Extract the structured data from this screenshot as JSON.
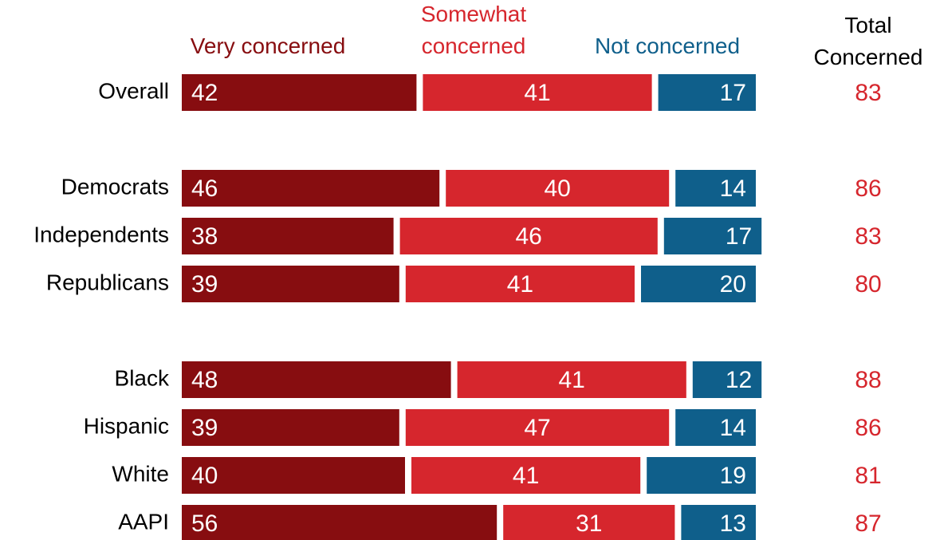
{
  "chart_data": {
    "type": "stacked-bar",
    "categories": [
      "Overall",
      null,
      "Democrats",
      "Independents",
      "Republicans",
      null,
      "Black",
      "Hispanic",
      "White",
      "AAPI"
    ],
    "series": [
      {
        "name": "Very concerned",
        "color": "#870d10",
        "values": [
          42,
          null,
          46,
          38,
          39,
          null,
          48,
          39,
          40,
          56
        ]
      },
      {
        "name": "Somewhat concerned",
        "color": "#d6262d",
        "values": [
          41,
          null,
          40,
          46,
          41,
          null,
          41,
          47,
          41,
          31
        ]
      },
      {
        "name": "Not concerned",
        "color": "#0f5f8b",
        "values": [
          17,
          null,
          14,
          17,
          20,
          null,
          12,
          14,
          19,
          13
        ]
      }
    ],
    "totals": {
      "name": "Total Concerned",
      "color": "#d6262d",
      "values": [
        83,
        null,
        86,
        83,
        80,
        null,
        88,
        86,
        81,
        87
      ]
    }
  }
}
